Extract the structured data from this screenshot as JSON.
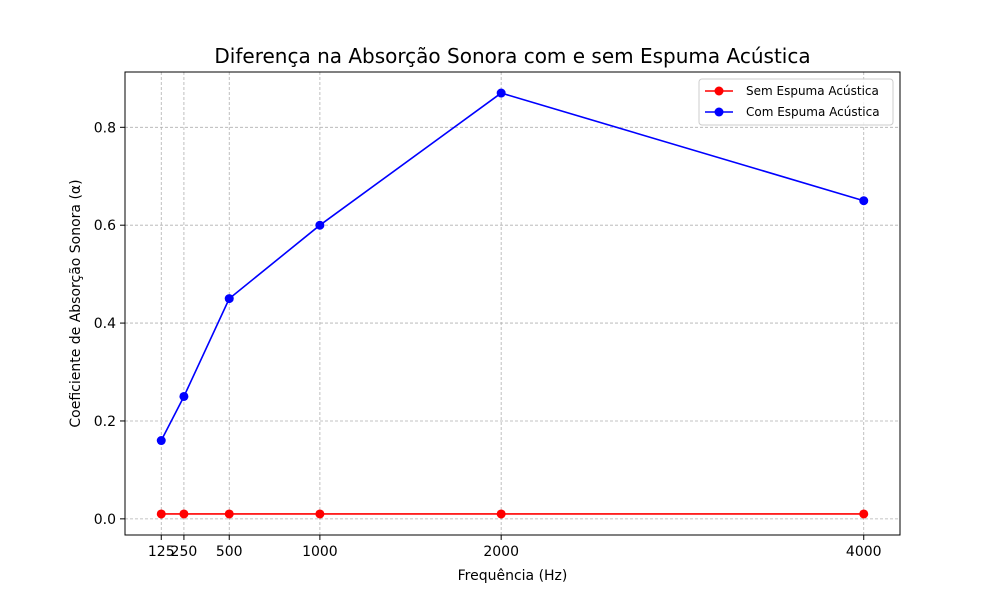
{
  "chart_data": {
    "type": "line",
    "title": "Diferença na Absorção Sonora com e sem Espuma Acústica",
    "xlabel": "Frequência (Hz)",
    "ylabel": "Coeficiente de Absorção Sonora (α)",
    "x": [
      125,
      250,
      500,
      1000,
      2000,
      4000
    ],
    "x_tick_labels": [
      "125",
      "250",
      "500",
      "1000",
      "2000",
      "4000"
    ],
    "y_ticks": [
      0.0,
      0.2,
      0.4,
      0.6,
      0.8
    ],
    "y_tick_labels": [
      "0.0",
      "0.2",
      "0.4",
      "0.6",
      "0.8"
    ],
    "xlim": [
      -75,
      4200
    ],
    "ylim": [
      -0.033,
      0.913
    ],
    "grid": true,
    "legend_position": "top-right",
    "series": [
      {
        "name": "Sem Espuma Acústica",
        "color": "#ff0000",
        "marker": "circle",
        "values": [
          0.01,
          0.01,
          0.01,
          0.01,
          0.01,
          0.01
        ]
      },
      {
        "name": "Com Espuma Acústica",
        "color": "#0000ff",
        "marker": "circle",
        "values": [
          0.16,
          0.25,
          0.45,
          0.6,
          0.87,
          0.65
        ]
      }
    ]
  }
}
